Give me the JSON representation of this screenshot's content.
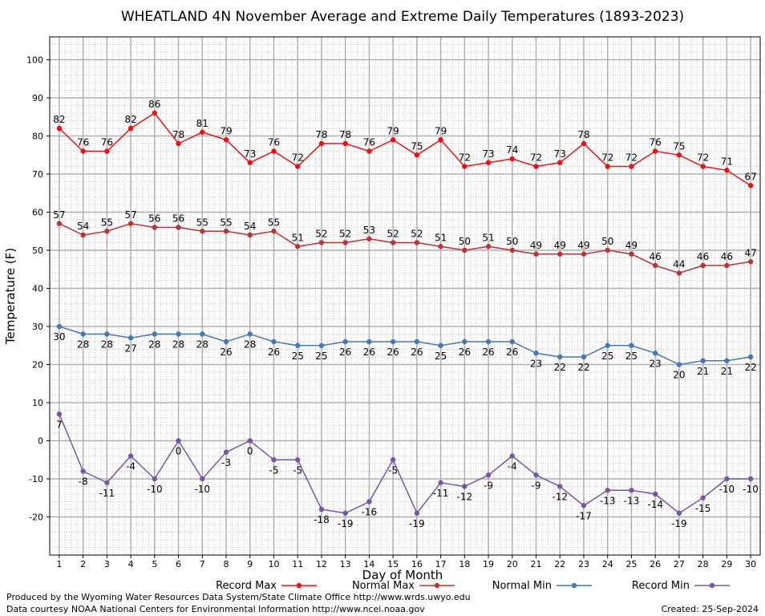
{
  "chart_data": {
    "type": "line",
    "title": "WHEATLAND 4N November Average and Extreme Daily Temperatures (1893-2023)",
    "xlabel": "Day of Month",
    "ylabel": "Temperature (F)",
    "xlim": [
      0.6,
      30.4
    ],
    "ylim": [
      -30,
      106
    ],
    "yticks": [
      -20,
      -10,
      0,
      10,
      20,
      30,
      40,
      50,
      60,
      70,
      80,
      90,
      100
    ],
    "x": [
      1,
      2,
      3,
      4,
      5,
      6,
      7,
      8,
      9,
      10,
      11,
      12,
      13,
      14,
      15,
      16,
      17,
      18,
      19,
      20,
      21,
      22,
      23,
      24,
      25,
      26,
      27,
      28,
      29,
      30
    ],
    "grid": true,
    "series": [
      {
        "name": "Record Max",
        "color": "#ee1111",
        "label_position": "above",
        "values": [
          82,
          76,
          76,
          82,
          86,
          78,
          81,
          79,
          73,
          76,
          72,
          78,
          78,
          76,
          79,
          75,
          79,
          72,
          73,
          74,
          72,
          73,
          78,
          72,
          72,
          76,
          75,
          72,
          71,
          67
        ]
      },
      {
        "name": "Normal Max",
        "color": "#bb3333",
        "label_position": "above",
        "values": [
          57,
          54,
          55,
          57,
          56,
          56,
          55,
          55,
          54,
          55,
          51,
          52,
          52,
          53,
          52,
          52,
          51,
          50,
          51,
          50,
          49,
          49,
          49,
          50,
          49,
          46,
          44,
          46,
          46,
          47
        ]
      },
      {
        "name": "Normal Min",
        "color": "#4477bb",
        "label_position": "below",
        "values": [
          30,
          28,
          28,
          27,
          28,
          28,
          28,
          26,
          28,
          26,
          25,
          25,
          26,
          26,
          26,
          26,
          25,
          26,
          26,
          26,
          23,
          22,
          22,
          25,
          25,
          23,
          20,
          21,
          21,
          22
        ]
      },
      {
        "name": "Record Min",
        "color": "#7755aa",
        "label_position": "below",
        "values": [
          7,
          -8,
          -11,
          -4,
          -10,
          0,
          -10,
          -3,
          0,
          -5,
          -5,
          -18,
          -19,
          -16,
          -5,
          -19,
          -11,
          -12,
          -9,
          -4,
          -9,
          -12,
          -17,
          -13,
          -13,
          -14,
          -19,
          -15,
          -10,
          -10
        ]
      }
    ]
  },
  "footer": {
    "credit_line1": "Produced by the Wyoming Water Resources Data System/State Climate Office http://www.wrds.uwyo.edu",
    "credit_line2": "Data courtesy NOAA National Centers for Environmental Information http://www.ncei.noaa.gov",
    "created": "Created:  25-Sep-2024"
  }
}
